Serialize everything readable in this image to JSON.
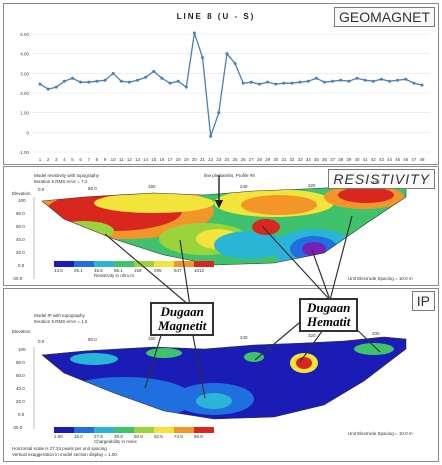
{
  "chart_data": [
    {
      "type": "line",
      "title": "LINE 8 (U - S)",
      "panel_label": "GEOMAGNET",
      "y_ticks": [
        "5.00",
        "4.00",
        "3.00",
        "2.00",
        "1.00",
        "0",
        "-1.00"
      ],
      "ylim": [
        -1,
        5
      ],
      "x_labels": [
        "1",
        "2",
        "3",
        "4",
        "5",
        "6",
        "7",
        "8",
        "9",
        "10",
        "11",
        "12",
        "13",
        "14",
        "15",
        "16",
        "17",
        "18",
        "19",
        "20",
        "21",
        "22",
        "23",
        "24",
        "25",
        "26",
        "27",
        "28",
        "29",
        "30",
        "31",
        "32",
        "33",
        "34",
        "35",
        "36",
        "37",
        "38",
        "39",
        "40",
        "41",
        "42",
        "43",
        "44",
        "45",
        "46",
        "47",
        "48"
      ],
      "series": [
        {
          "color": "#4a7fb5",
          "values": [
            2.45,
            2.2,
            2.3,
            2.6,
            2.75,
            2.55,
            2.55,
            2.6,
            2.65,
            3.0,
            2.6,
            2.55,
            2.65,
            2.8,
            3.1,
            2.75,
            2.5,
            2.6,
            2.3,
            5.05,
            3.8,
            -0.2,
            1.0,
            4.0,
            3.5,
            2.5,
            2.55,
            2.45,
            2.55,
            2.45,
            2.5,
            2.5,
            2.55,
            2.6,
            2.75,
            2.55,
            2.6,
            2.65,
            2.6,
            2.75,
            2.65,
            2.6,
            2.7,
            2.6,
            2.65,
            2.7,
            2.5,
            2.4
          ]
        }
      ]
    },
    {
      "type": "heatmap",
      "panel_label": "RESISTIVITY",
      "header_lines": [
        "Model resistivity with topography",
        "Iteration 5 RMS error = 7.2"
      ],
      "center_caption": "line pln barebs, Profile #8",
      "elevation_label": "Elevation",
      "y_ticks": [
        "100",
        "80.0",
        "60.0",
        "40.0",
        "20.0",
        "0.0",
        "-20.0"
      ],
      "distance_ticks": [
        "0.0",
        "80.0",
        "160",
        "240",
        "320",
        "400"
      ],
      "scale_values": [
        "13.6",
        "25.1",
        "46.5",
        "86.1",
        "159",
        "295",
        "547",
        "1012"
      ],
      "scale_caption": "Resistivity in ohm.m",
      "spacing_note": "Unit Electrode Spacing = 10.0 m"
    },
    {
      "type": "heatmap",
      "panel_label": "IP",
      "header_lines": [
        "Model IP with topography",
        "Iteration 5 RMS error = 1.5"
      ],
      "elevation_label": "Elevation",
      "y_ticks": [
        "100",
        "80.0",
        "60.0",
        "40.0",
        "20.0",
        "0.0",
        "-20.0"
      ],
      "distance_ticks": [
        "0.0",
        "80.0",
        "160",
        "240",
        "320",
        "400"
      ],
      "scale_values": [
        "2.60",
        "15.0",
        "27.5",
        "39.9",
        "50.9",
        "62.5",
        "74.9",
        "86.9"
      ],
      "scale_caption": "Chargeability in msec",
      "spacing_note": "Unit Electrode Spacing = 10.0 m",
      "footer_lines": [
        "Horizontal scale is 27.34 pixels per unit spacing",
        "Vertical exaggeration in model section display = 1.00"
      ]
    }
  ],
  "callouts": {
    "magnetit": [
      "Dugaan",
      "Magnetit"
    ],
    "hematit": [
      "Dugaan",
      "Hematit"
    ]
  },
  "colors": {
    "line": "#4a7fb5",
    "scale": [
      "#1b1bb5",
      "#1f6fe0",
      "#2ab5d8",
      "#3fc26b",
      "#9ad43a",
      "#f2e43a",
      "#f2962a",
      "#d9261e"
    ]
  }
}
